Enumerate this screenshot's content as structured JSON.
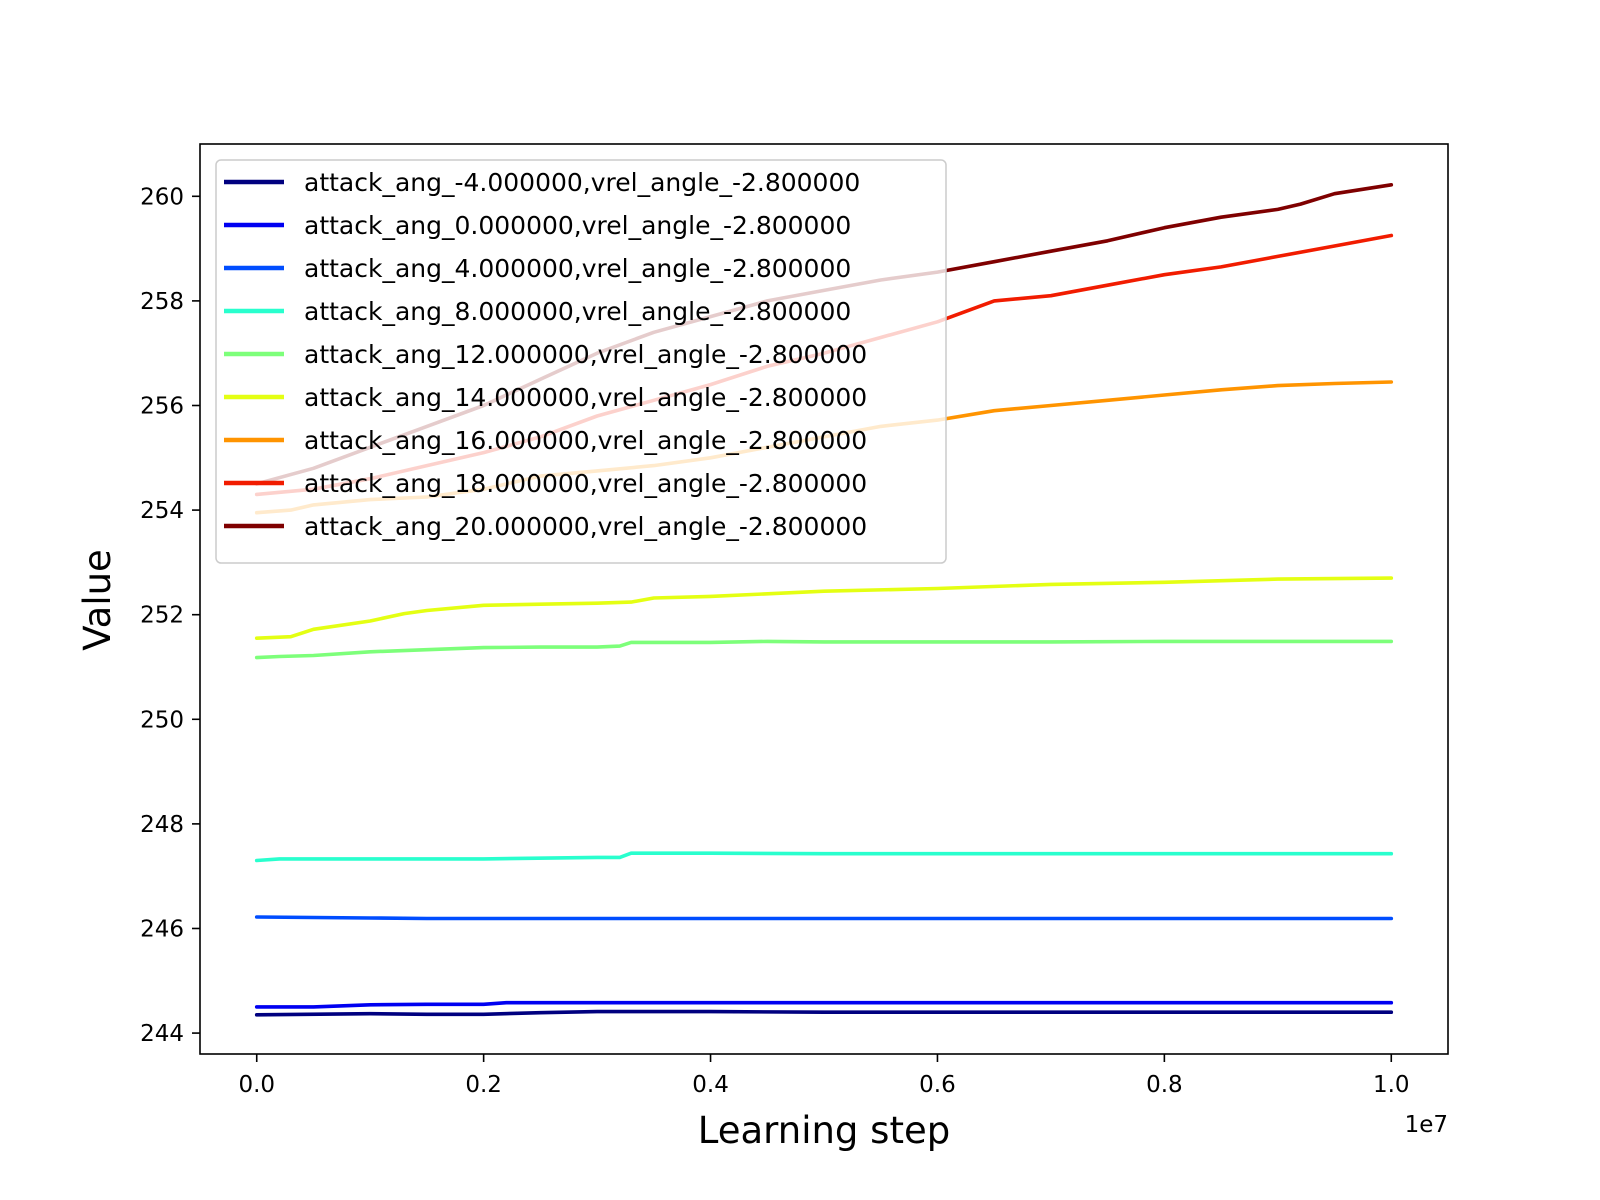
{
  "chart_data": {
    "type": "line",
    "title": "",
    "xlabel": "Learning step",
    "ylabel": "Value",
    "x_offset_label": "1e7",
    "xlim": [
      -0.05,
      1.05
    ],
    "ylim": [
      243.6,
      261.0
    ],
    "x_ticks": [
      0.0,
      0.2,
      0.4,
      0.6,
      0.8,
      1.0
    ],
    "x_tick_labels": [
      "0.0",
      "0.2",
      "0.4",
      "0.6",
      "0.8",
      "1.0"
    ],
    "y_ticks": [
      244,
      246,
      248,
      250,
      252,
      254,
      256,
      258,
      260
    ],
    "y_tick_labels": [
      "244",
      "246",
      "248",
      "250",
      "252",
      "254",
      "256",
      "258",
      "260"
    ],
    "grid": false,
    "legend_position": "upper-left",
    "series": [
      {
        "name": "attack_ang_-4.000000,vrel_angle_-2.800000",
        "color": "#00007f",
        "x": [
          0,
          0.1,
          0.15,
          0.2,
          0.25,
          0.3,
          0.4,
          0.5,
          0.6,
          0.7,
          0.8,
          0.9,
          1.0
        ],
        "y": [
          244.35,
          244.37,
          244.36,
          244.36,
          244.39,
          244.41,
          244.41,
          244.4,
          244.4,
          244.4,
          244.4,
          244.4,
          244.4
        ]
      },
      {
        "name": "attack_ang_0.000000,vrel_angle_-2.800000",
        "color": "#0000f1",
        "x": [
          0,
          0.05,
          0.1,
          0.15,
          0.2,
          0.22,
          0.3,
          0.4,
          0.5,
          0.6,
          0.7,
          0.8,
          0.9,
          1.0
        ],
        "y": [
          244.5,
          244.5,
          244.54,
          244.55,
          244.55,
          244.58,
          244.58,
          244.58,
          244.58,
          244.58,
          244.58,
          244.58,
          244.58,
          244.58
        ]
      },
      {
        "name": "attack_ang_4.000000,vrel_angle_-2.800000",
        "color": "#004dff",
        "x": [
          0,
          0.05,
          0.1,
          0.15,
          0.2,
          0.3,
          0.4,
          0.5,
          0.6,
          0.7,
          0.8,
          0.9,
          1.0
        ],
        "y": [
          246.22,
          246.21,
          246.2,
          246.19,
          246.19,
          246.19,
          246.19,
          246.19,
          246.19,
          246.19,
          246.19,
          246.19,
          246.19
        ]
      },
      {
        "name": "attack_ang_8.000000,vrel_angle_-2.800000",
        "color": "#29ffce",
        "x": [
          0,
          0.02,
          0.1,
          0.2,
          0.3,
          0.32,
          0.33,
          0.4,
          0.5,
          0.6,
          0.7,
          0.8,
          0.9,
          1.0
        ],
        "y": [
          247.3,
          247.33,
          247.33,
          247.33,
          247.36,
          247.36,
          247.44,
          247.44,
          247.43,
          247.43,
          247.43,
          247.43,
          247.43,
          247.43
        ]
      },
      {
        "name": "attack_ang_12.000000,vrel_angle_-2.800000",
        "color": "#7dff7a",
        "x": [
          0,
          0.02,
          0.05,
          0.1,
          0.15,
          0.2,
          0.25,
          0.3,
          0.32,
          0.33,
          0.4,
          0.45,
          0.5,
          0.6,
          0.7,
          0.8,
          0.9,
          1.0
        ],
        "y": [
          251.18,
          251.2,
          251.22,
          251.29,
          251.33,
          251.37,
          251.38,
          251.38,
          251.4,
          251.47,
          251.47,
          251.49,
          251.48,
          251.48,
          251.48,
          251.49,
          251.49,
          251.49
        ]
      },
      {
        "name": "attack_ang_14.000000,vrel_angle_-2.800000",
        "color": "#e4ff13",
        "x": [
          0,
          0.03,
          0.05,
          0.1,
          0.13,
          0.15,
          0.2,
          0.25,
          0.3,
          0.33,
          0.35,
          0.4,
          0.5,
          0.6,
          0.7,
          0.8,
          0.9,
          1.0
        ],
        "y": [
          251.55,
          251.58,
          251.72,
          251.88,
          252.02,
          252.08,
          252.18,
          252.2,
          252.22,
          252.24,
          252.32,
          252.35,
          252.45,
          252.5,
          252.58,
          252.62,
          252.68,
          252.7
        ]
      },
      {
        "name": "attack_ang_16.000000,vrel_angle_-2.800000",
        "color": "#ff9400",
        "x": [
          0,
          0.03,
          0.05,
          0.1,
          0.15,
          0.2,
          0.25,
          0.3,
          0.35,
          0.4,
          0.45,
          0.5,
          0.55,
          0.6,
          0.65,
          0.7,
          0.75,
          0.8,
          0.85,
          0.9,
          0.95,
          1.0
        ],
        "y": [
          253.95,
          254.0,
          254.1,
          254.2,
          254.25,
          254.4,
          254.65,
          254.75,
          254.85,
          255.0,
          255.2,
          255.4,
          255.6,
          255.72,
          255.9,
          256.0,
          256.1,
          256.2,
          256.3,
          256.38,
          256.42,
          256.45
        ]
      },
      {
        "name": "attack_ang_18.000000,vrel_angle_-2.800000",
        "color": "#f11c00",
        "x": [
          0,
          0.05,
          0.1,
          0.15,
          0.2,
          0.25,
          0.3,
          0.35,
          0.4,
          0.45,
          0.5,
          0.55,
          0.6,
          0.65,
          0.7,
          0.75,
          0.8,
          0.85,
          0.9,
          0.95,
          1.0
        ],
        "y": [
          254.3,
          254.4,
          254.6,
          254.85,
          255.1,
          255.4,
          255.8,
          256.1,
          256.4,
          256.75,
          257.0,
          257.3,
          257.6,
          258.0,
          258.1,
          258.3,
          258.5,
          258.65,
          258.85,
          259.05,
          259.25
        ]
      },
      {
        "name": "attack_ang_20.000000,vrel_angle_-2.800000",
        "color": "#7f0000",
        "x": [
          0,
          0.05,
          0.1,
          0.15,
          0.2,
          0.25,
          0.3,
          0.35,
          0.4,
          0.45,
          0.5,
          0.55,
          0.6,
          0.65,
          0.7,
          0.75,
          0.8,
          0.85,
          0.9,
          0.92,
          0.95,
          1.0
        ],
        "y": [
          254.5,
          254.8,
          255.2,
          255.6,
          256.0,
          256.5,
          257.0,
          257.4,
          257.7,
          258.0,
          258.2,
          258.4,
          258.55,
          258.75,
          258.95,
          259.15,
          259.4,
          259.6,
          259.75,
          259.85,
          260.05,
          260.22
        ]
      }
    ]
  }
}
